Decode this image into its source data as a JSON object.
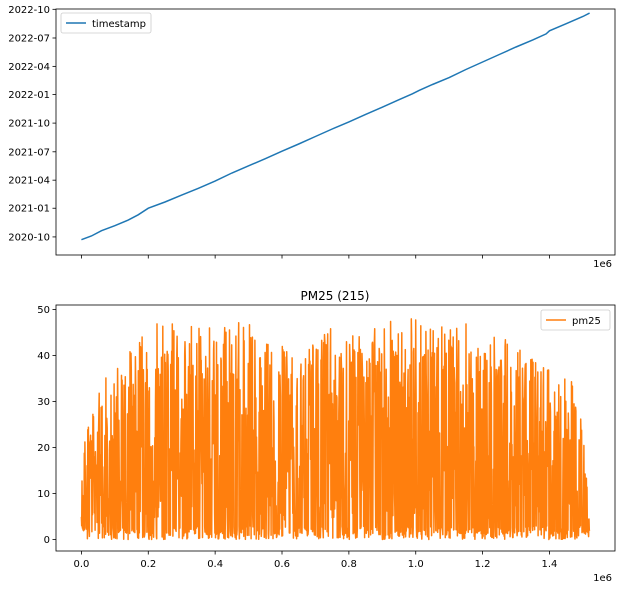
{
  "chart_data": [
    {
      "type": "line",
      "title": "",
      "xlabel": "",
      "ylabel": "",
      "x_offset_label": "1e6",
      "xlim": [
        -0.076,
        1.596
      ],
      "ylim": [
        "2020-08-04",
        "2022-10-02"
      ],
      "xticks": [
        0.0,
        0.2,
        0.4,
        0.6,
        0.8,
        1.0,
        1.2,
        1.4
      ],
      "show_xtick_labels": false,
      "yticks": [
        "2020-10",
        "2021-01",
        "2021-04",
        "2021-07",
        "2021-10",
        "2022-01",
        "2022-04",
        "2022-07",
        "2022-10"
      ],
      "grid": false,
      "legend": {
        "position": "top-left",
        "entries": [
          "timestamp"
        ]
      },
      "series": [
        {
          "name": "timestamp",
          "color": "#1f77b4",
          "x": [
            0.0,
            0.03,
            0.06,
            0.1,
            0.14,
            0.17,
            0.2,
            0.25,
            0.3,
            0.35,
            0.4,
            0.45,
            0.5,
            0.55,
            0.6,
            0.65,
            0.7,
            0.75,
            0.8,
            0.85,
            0.9,
            0.95,
            0.99,
            1.01,
            1.05,
            1.1,
            1.15,
            1.2,
            1.25,
            1.3,
            1.35,
            1.39,
            1.4,
            1.45,
            1.5,
            1.52
          ],
          "y": [
            "2020-09-22",
            "2020-10-04",
            "2020-10-21",
            "2020-11-06",
            "2020-11-24",
            "2020-12-11",
            "2021-01-01",
            "2021-01-21",
            "2021-02-12",
            "2021-03-06",
            "2021-03-29",
            "2021-04-24",
            "2021-05-17",
            "2021-06-09",
            "2021-07-03",
            "2021-07-26",
            "2021-08-19",
            "2021-09-12",
            "2021-10-05",
            "2021-10-29",
            "2021-11-21",
            "2021-12-15",
            "2022-01-03",
            "2022-01-14",
            "2022-02-02",
            "2022-02-24",
            "2022-03-22",
            "2022-04-15",
            "2022-05-09",
            "2022-06-02",
            "2022-06-25",
            "2022-07-14",
            "2022-07-24",
            "2022-08-16",
            "2022-09-08",
            "2022-09-19"
          ]
        }
      ]
    },
    {
      "type": "line",
      "title": "PM25 (215)",
      "xlabel": "",
      "ylabel": "",
      "x_offset_label": "1e6",
      "xlim": [
        -0.076,
        1.596
      ],
      "ylim": [
        -2.5,
        51.0
      ],
      "xticks": [
        0.0,
        0.2,
        0.4,
        0.6,
        0.8,
        1.0,
        1.2,
        1.4
      ],
      "xtick_labels": [
        "0.0",
        "0.2",
        "0.4",
        "0.6",
        "0.8",
        "1.0",
        "1.2",
        "1.4"
      ],
      "yticks": [
        0,
        10,
        20,
        30,
        40,
        50
      ],
      "ytick_labels": [
        "0",
        "10",
        "20",
        "30",
        "40",
        "50"
      ],
      "grid": false,
      "legend": {
        "position": "top-right",
        "entries": [
          "pm25"
        ]
      },
      "series": [
        {
          "name": "pm25",
          "color": "#ff7f0e",
          "x_range": [
            0,
            1.52
          ],
          "n_points": 1600,
          "y_range": [
            0,
            48.5
          ],
          "envelope_max": [
            [
              0.0,
              11
            ],
            [
              0.01,
              26
            ],
            [
              0.03,
              30
            ],
            [
              0.05,
              34
            ],
            [
              0.08,
              36
            ],
            [
              0.1,
              38
            ],
            [
              0.13,
              40
            ],
            [
              0.16,
              43
            ],
            [
              0.2,
              47
            ],
            [
              0.25,
              47
            ],
            [
              0.3,
              47
            ],
            [
              0.35,
              47.5
            ],
            [
              0.4,
              47.5
            ],
            [
              0.45,
              47.5
            ],
            [
              0.5,
              47
            ],
            [
              0.55,
              43
            ],
            [
              0.6,
              42
            ],
            [
              0.65,
              40
            ],
            [
              0.7,
              45
            ],
            [
              0.75,
              46
            ],
            [
              0.8,
              44
            ],
            [
              0.85,
              46
            ],
            [
              0.9,
              48
            ],
            [
              0.95,
              48.5
            ],
            [
              1.0,
              48
            ],
            [
              1.05,
              46
            ],
            [
              1.1,
              47
            ],
            [
              1.15,
              47
            ],
            [
              1.2,
              45
            ],
            [
              1.25,
              44
            ],
            [
              1.3,
              43
            ],
            [
              1.35,
              40
            ],
            [
              1.4,
              38
            ],
            [
              1.44,
              36
            ],
            [
              1.47,
              35
            ],
            [
              1.5,
              24
            ],
            [
              1.52,
              4
            ]
          ]
        }
      ]
    }
  ]
}
